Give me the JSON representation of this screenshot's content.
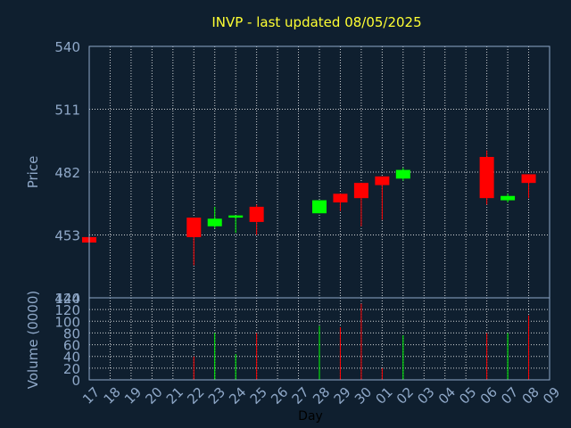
{
  "chart_data": {
    "type": "candlestick",
    "title": "INVP - last updated 08/05/2025",
    "price_axis": {
      "label": "Price",
      "ylim": [
        424,
        540
      ],
      "ticks": [
        424,
        453,
        482,
        511,
        540
      ]
    },
    "volume_axis": {
      "label": "Volume (0000)",
      "ylim": [
        0,
        140
      ],
      "ticks": [
        0,
        20,
        40,
        60,
        80,
        100,
        120,
        140
      ]
    },
    "xlabel": "Day",
    "x_ticks": [
      "17",
      "18",
      "19",
      "20",
      "21",
      "22",
      "23",
      "24",
      "25",
      "26",
      "27",
      "28",
      "29",
      "30",
      "01",
      "02",
      "03",
      "04",
      "05",
      "06",
      "07",
      "08",
      "09"
    ],
    "grid": true,
    "colors": {
      "up": "#00ff00",
      "down": "#ff0000",
      "background": "#0f1f2f",
      "text": "#8fa8c8",
      "title": "#ffff33"
    },
    "candles": [
      {
        "day": "17",
        "open": 452.0,
        "high": 452.0,
        "low": 449.0,
        "close": 449.5,
        "volume": 0
      },
      {
        "day": "22",
        "open": 461.0,
        "high": 461.0,
        "low": 439.0,
        "close": 452.0,
        "volume": 40
      },
      {
        "day": "23",
        "open": 457.0,
        "high": 466.0,
        "low": 456.0,
        "close": 460.5,
        "volume": 80
      },
      {
        "day": "24",
        "open": 461.0,
        "high": 462.0,
        "low": 454.0,
        "close": 462.0,
        "volume": 44
      },
      {
        "day": "25",
        "open": 466.0,
        "high": 467.0,
        "low": 453.0,
        "close": 459.0,
        "volume": 80
      },
      {
        "day": "28",
        "open": 463.0,
        "high": 469.0,
        "low": 463.0,
        "close": 469.0,
        "volume": 92
      },
      {
        "day": "29",
        "open": 472.0,
        "high": 472.0,
        "low": 464.0,
        "close": 468.0,
        "volume": 90
      },
      {
        "day": "30",
        "open": 477.0,
        "high": 477.0,
        "low": 457.0,
        "close": 470.0,
        "volume": 130
      },
      {
        "day": "01",
        "open": 480.0,
        "high": 480.0,
        "low": 460.0,
        "close": 476.0,
        "volume": 20
      },
      {
        "day": "02",
        "open": 479.0,
        "high": 484.0,
        "low": 478.0,
        "close": 483.0,
        "volume": 76
      },
      {
        "day": "06",
        "open": 489.0,
        "high": 492.0,
        "low": 467.0,
        "close": 470.0,
        "volume": 80
      },
      {
        "day": "07",
        "open": 469.0,
        "high": 472.0,
        "low": 468.0,
        "close": 471.0,
        "volume": 80
      },
      {
        "day": "08",
        "open": 481.0,
        "high": 481.0,
        "low": 470.0,
        "close": 477.0,
        "volume": 110
      }
    ]
  }
}
